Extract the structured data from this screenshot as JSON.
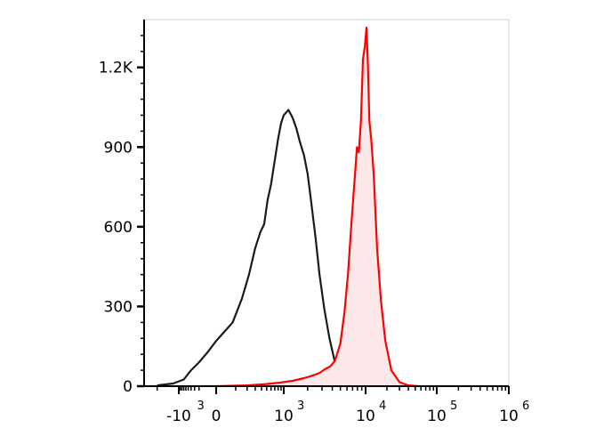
{
  "chart_data": {
    "type": "area",
    "title": "",
    "xlabel": "",
    "ylabel": "",
    "x_scale": "biexponential",
    "xlim": [
      -3000,
      1000000
    ],
    "ylim": [
      0,
      1380
    ],
    "grid": false,
    "legend": "none",
    "x_ticks": [
      {
        "base": "-10",
        "exp": "3",
        "value": -1000
      },
      {
        "base": "0",
        "exp": "",
        "value": 0
      },
      {
        "base": "10",
        "exp": "3",
        "value": 1000
      },
      {
        "base": "10",
        "exp": "4",
        "value": 10000
      },
      {
        "base": "10",
        "exp": "5",
        "value": 100000
      },
      {
        "base": "10",
        "exp": "6",
        "value": 1000000
      }
    ],
    "y_ticks": [
      {
        "label": "0",
        "value": 0
      },
      {
        "label": "300",
        "value": 300
      },
      {
        "label": "600",
        "value": 600
      },
      {
        "label": "900",
        "value": 900
      },
      {
        "label": "1.2K",
        "value": 1200
      }
    ],
    "series": [
      {
        "color": "#1a1a1a",
        "fill": "none",
        "points": [
          [
            -2000,
            3
          ],
          [
            -1200,
            10
          ],
          [
            -700,
            25
          ],
          [
            -400,
            60
          ],
          [
            -200,
            90
          ],
          [
            -80,
            125
          ],
          [
            0,
            170
          ],
          [
            80,
            240
          ],
          [
            150,
            330
          ],
          [
            220,
            420
          ],
          [
            300,
            520
          ],
          [
            380,
            580
          ],
          [
            450,
            610
          ],
          [
            520,
            700
          ],
          [
            600,
            760
          ],
          [
            700,
            850
          ],
          [
            800,
            930
          ],
          [
            900,
            990
          ],
          [
            1000,
            1020
          ],
          [
            1150,
            1040
          ],
          [
            1300,
            1010
          ],
          [
            1450,
            970
          ],
          [
            1600,
            920
          ],
          [
            1800,
            870
          ],
          [
            2000,
            800
          ],
          [
            2200,
            700
          ],
          [
            2500,
            560
          ],
          [
            2800,
            420
          ],
          [
            3200,
            290
          ],
          [
            3700,
            180
          ],
          [
            4300,
            90
          ],
          [
            5200,
            40
          ],
          [
            6500,
            18
          ],
          [
            8500,
            6
          ],
          [
            11000,
            2
          ]
        ]
      },
      {
        "color": "#ff0000",
        "fill": "#fce8e8",
        "points": [
          [
            0,
            0
          ],
          [
            200,
            3
          ],
          [
            500,
            8
          ],
          [
            900,
            14
          ],
          [
            1300,
            20
          ],
          [
            1800,
            30
          ],
          [
            2300,
            40
          ],
          [
            2800,
            50
          ],
          [
            3300,
            65
          ],
          [
            3800,
            75
          ],
          [
            4300,
            95
          ],
          [
            5000,
            160
          ],
          [
            5600,
            280
          ],
          [
            6200,
            430
          ],
          [
            6800,
            620
          ],
          [
            7400,
            780
          ],
          [
            7900,
            900
          ],
          [
            8300,
            880
          ],
          [
            8800,
            1000
          ],
          [
            9300,
            1230
          ],
          [
            9800,
            1280
          ],
          [
            10300,
            1350
          ],
          [
            10800,
            1200
          ],
          [
            11300,
            1000
          ],
          [
            12000,
            930
          ],
          [
            13000,
            800
          ],
          [
            14500,
            520
          ],
          [
            16500,
            320
          ],
          [
            19000,
            170
          ],
          [
            23000,
            60
          ],
          [
            30000,
            15
          ],
          [
            40000,
            3
          ],
          [
            55000,
            0
          ]
        ]
      }
    ]
  }
}
